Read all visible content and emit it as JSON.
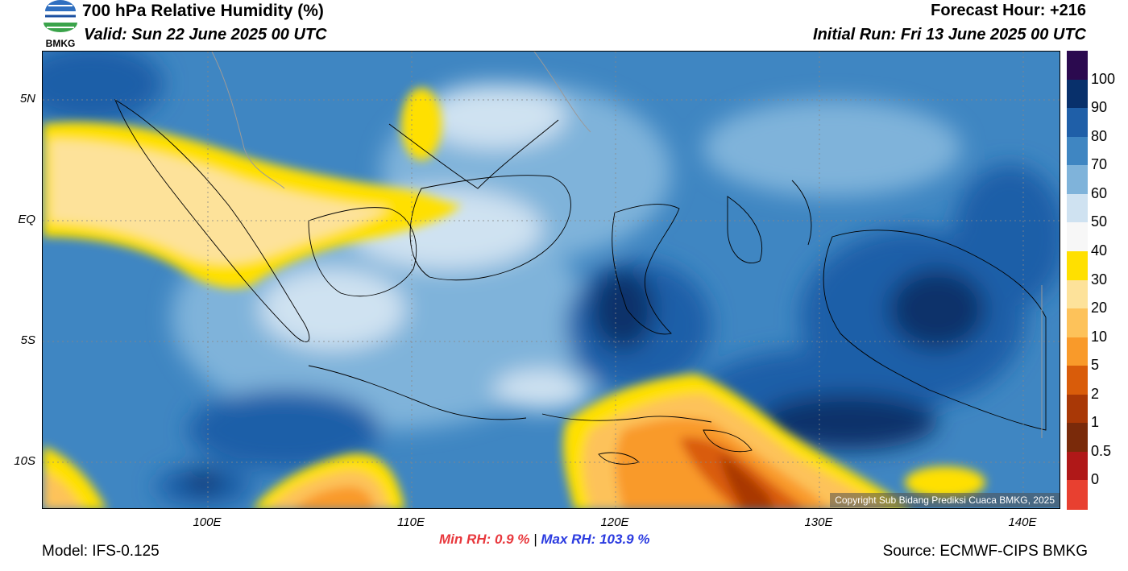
{
  "header": {
    "title": "700 hPa Relative Humidity (%)",
    "valid": "Valid: Sun 22 June 2025 00 UTC",
    "forecast_hour": "Forecast Hour: +216",
    "initial_run": "Initial Run: Fri 13 June 2025 00 UTC",
    "logo_text": "BMKG"
  },
  "map": {
    "lat_labels": [
      "5N",
      "EQ",
      "5S",
      "10S"
    ],
    "lon_labels": [
      "100E",
      "110E",
      "120E",
      "130E",
      "140E"
    ],
    "copyright": "Copyright Sub Bidang Prediksi Cuaca BMKG, 2025"
  },
  "colorbar": {
    "labels": [
      "100",
      "90",
      "80",
      "70",
      "60",
      "50",
      "40",
      "30",
      "20",
      "10",
      "5",
      "2",
      "1",
      "0.5",
      "0"
    ],
    "colors": [
      "#2b0a4f",
      "#08306b",
      "#1f5fa8",
      "#3f86c2",
      "#7fb3da",
      "#cfe2f1",
      "#f7f7f7",
      "#ffe000",
      "#fde29a",
      "#fdc25a",
      "#f99a2a",
      "#d95c0a",
      "#a93806",
      "#7a2a0a",
      "#b01818",
      "#e84030"
    ]
  },
  "stats": {
    "min_label": "Min RH:",
    "min_value": "0.9 %",
    "separator": "|",
    "max_label": "Max RH:",
    "max_value": "103.9 %"
  },
  "footer": {
    "model": "Model: IFS-0.125",
    "source": "Source: ECMWF-CIPS BMKG"
  }
}
